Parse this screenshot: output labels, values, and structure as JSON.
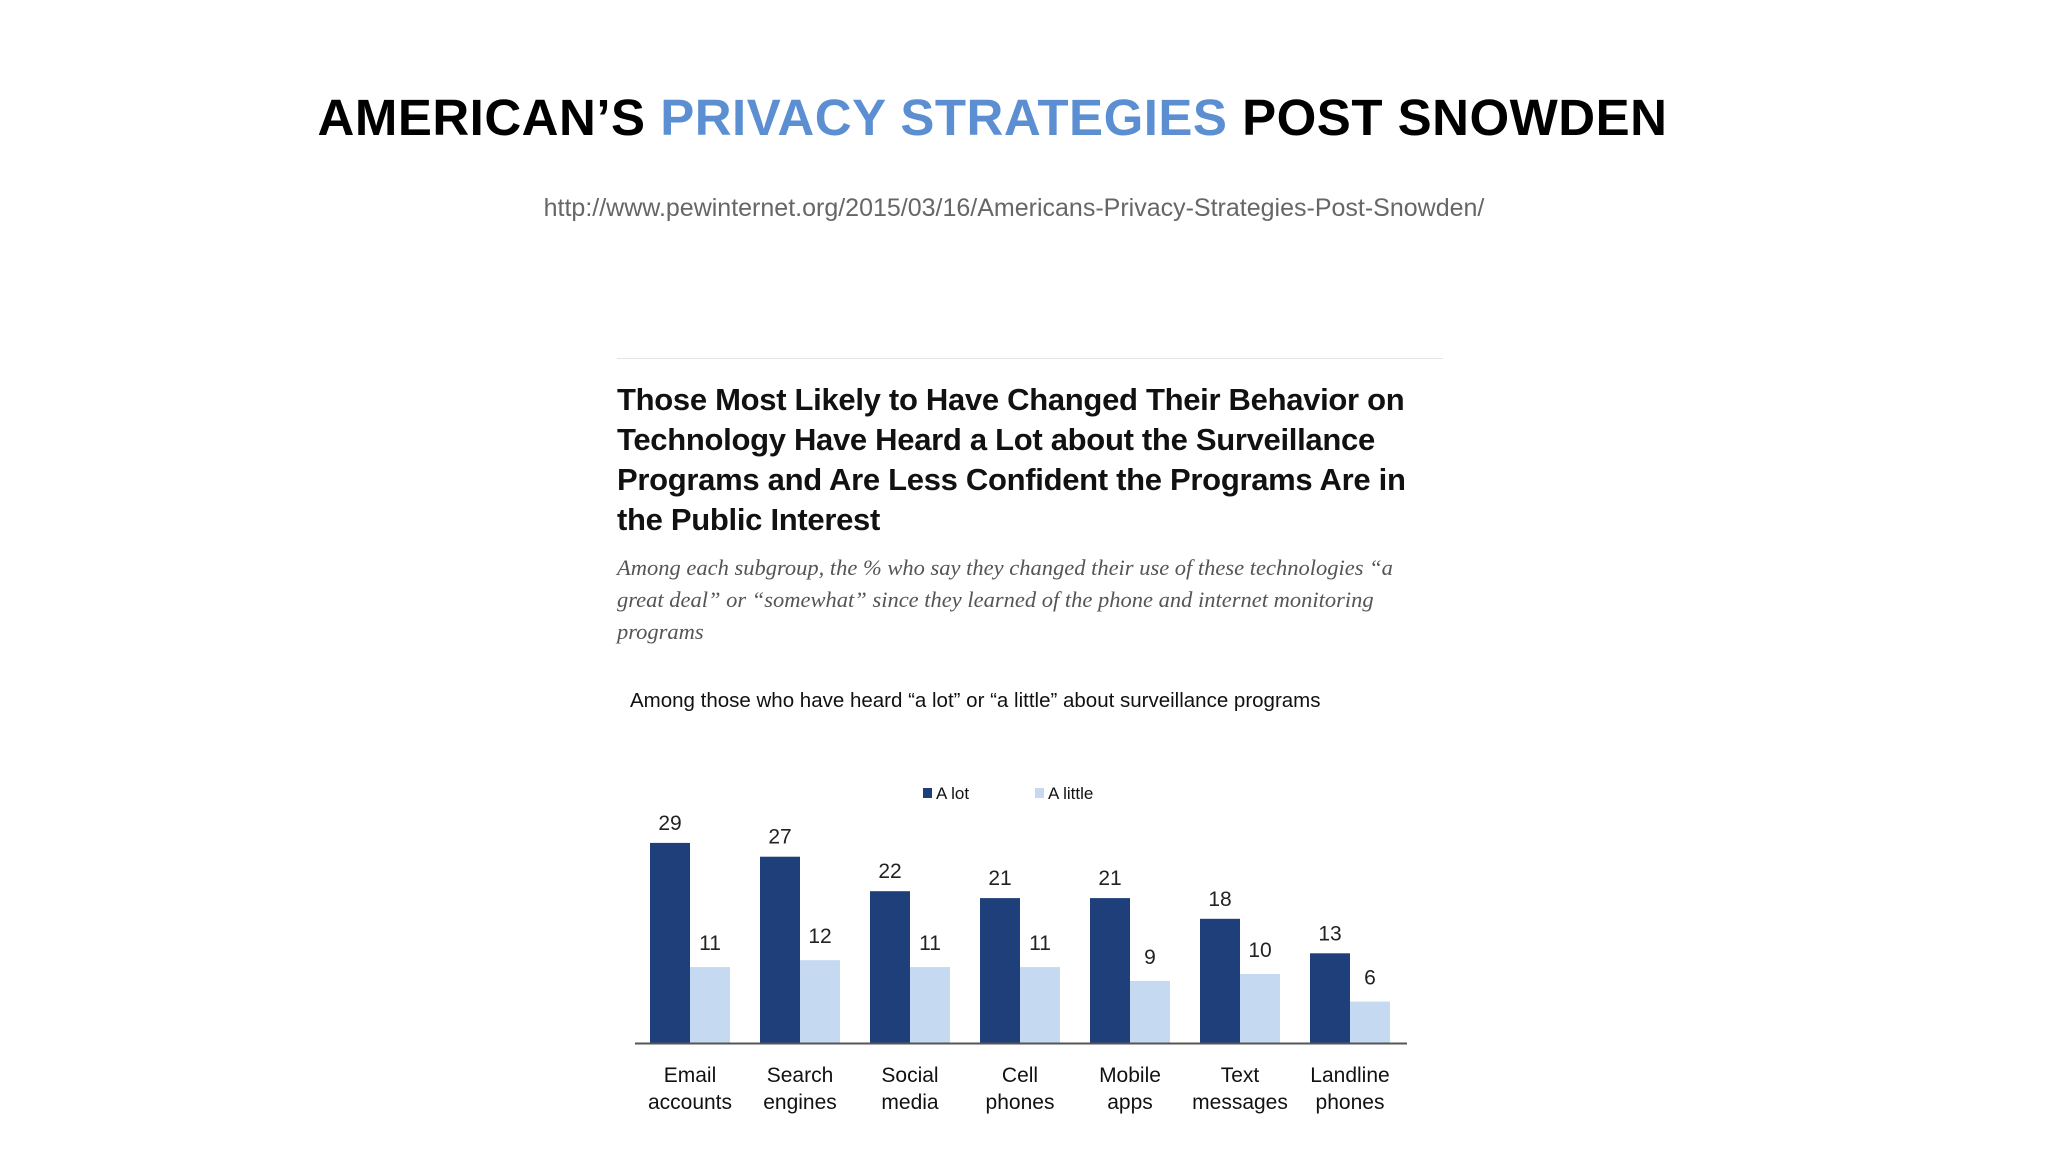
{
  "slide": {
    "title_part1": "AMERICAN’S ",
    "title_highlight": "PRIVACY STRATEGIES",
    "title_part2": " POST SNOWDEN",
    "source_url": "http://www.pewinternet.org/2015/03/16/Americans-Privacy-Strategies-Post-Snowden/",
    "highlight_color": "#5b8fd1"
  },
  "figure": {
    "headline": "Those Most Likely to Have Changed Their Behavior on Technology Have Heard a Lot about the Surveillance Programs and Are Less Confident the Programs Are in the Public Interest",
    "subtitle": "Among each subgroup, the % who say they changed their use of these technologies “a great deal” or “somewhat” since they learned of the phone and internet monitoring programs",
    "caption": "Among those who have heard “a lot” or “a little” about surveillance programs"
  },
  "chart_data": {
    "type": "bar",
    "categories": [
      [
        "Email",
        "accounts"
      ],
      [
        "Search",
        "engines"
      ],
      [
        "Social",
        "media"
      ],
      [
        "Cell",
        "phones"
      ],
      [
        "Mobile",
        "apps"
      ],
      [
        "Text",
        "messages"
      ],
      [
        "Landline",
        "phones"
      ]
    ],
    "series": [
      {
        "name": "A lot",
        "color": "#1f3f7a",
        "values": [
          29,
          27,
          22,
          21,
          21,
          18,
          13
        ]
      },
      {
        "name": "A little",
        "color": "#c5d9f1",
        "values": [
          11,
          12,
          11,
          11,
          9,
          10,
          6
        ]
      }
    ],
    "ylim": [
      0,
      30
    ],
    "title": "",
    "xlabel": "",
    "ylabel": "",
    "legend_position": "top-center",
    "grid": false
  }
}
